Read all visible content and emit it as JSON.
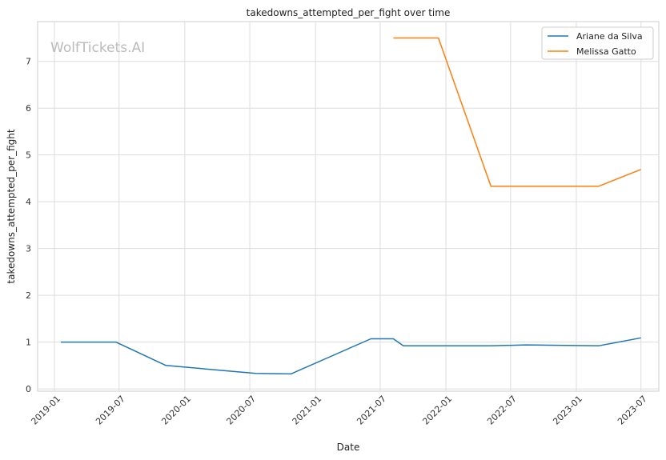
{
  "watermark": "WolfTickets.AI",
  "chart_data": {
    "type": "line",
    "title": "takedowns_attempted_per_fight over time",
    "xlabel": "Date",
    "ylabel": "takedowns_attempted_per_fight",
    "x_ticks": [
      "2019-01",
      "2019-07",
      "2020-01",
      "2020-07",
      "2021-01",
      "2021-07",
      "2022-01",
      "2022-07",
      "2023-01",
      "2023-07"
    ],
    "y_ticks": [
      "0",
      "1",
      "2",
      "3",
      "4",
      "5",
      "6",
      "7"
    ],
    "xlim": [
      "2018-11-15",
      "2023-08-20"
    ],
    "ylim": [
      -0.05,
      7.85
    ],
    "grid": true,
    "legend": "top-right",
    "series": [
      {
        "name": "Ariane da Silva",
        "color": "#1f77b4",
        "points": [
          [
            "2019-01-19",
            1.0
          ],
          [
            "2019-06-22",
            1.0
          ],
          [
            "2019-11-09",
            0.5
          ],
          [
            "2020-07-18",
            0.33
          ],
          [
            "2020-10-24",
            0.32
          ],
          [
            "2021-06-05",
            1.07
          ],
          [
            "2021-08-07",
            1.07
          ],
          [
            "2021-09-04",
            0.92
          ],
          [
            "2022-05-07",
            0.92
          ],
          [
            "2022-08-13",
            0.94
          ],
          [
            "2023-03-04",
            0.92
          ],
          [
            "2023-07-01",
            1.09
          ]
        ]
      },
      {
        "name": "Melissa Gatto",
        "color": "#ff7f0e",
        "points": [
          [
            "2021-08-07",
            7.5
          ],
          [
            "2021-12-11",
            7.5
          ],
          [
            "2022-05-07",
            4.33
          ],
          [
            "2023-03-04",
            4.33
          ],
          [
            "2023-07-01",
            4.69
          ]
        ]
      }
    ]
  }
}
